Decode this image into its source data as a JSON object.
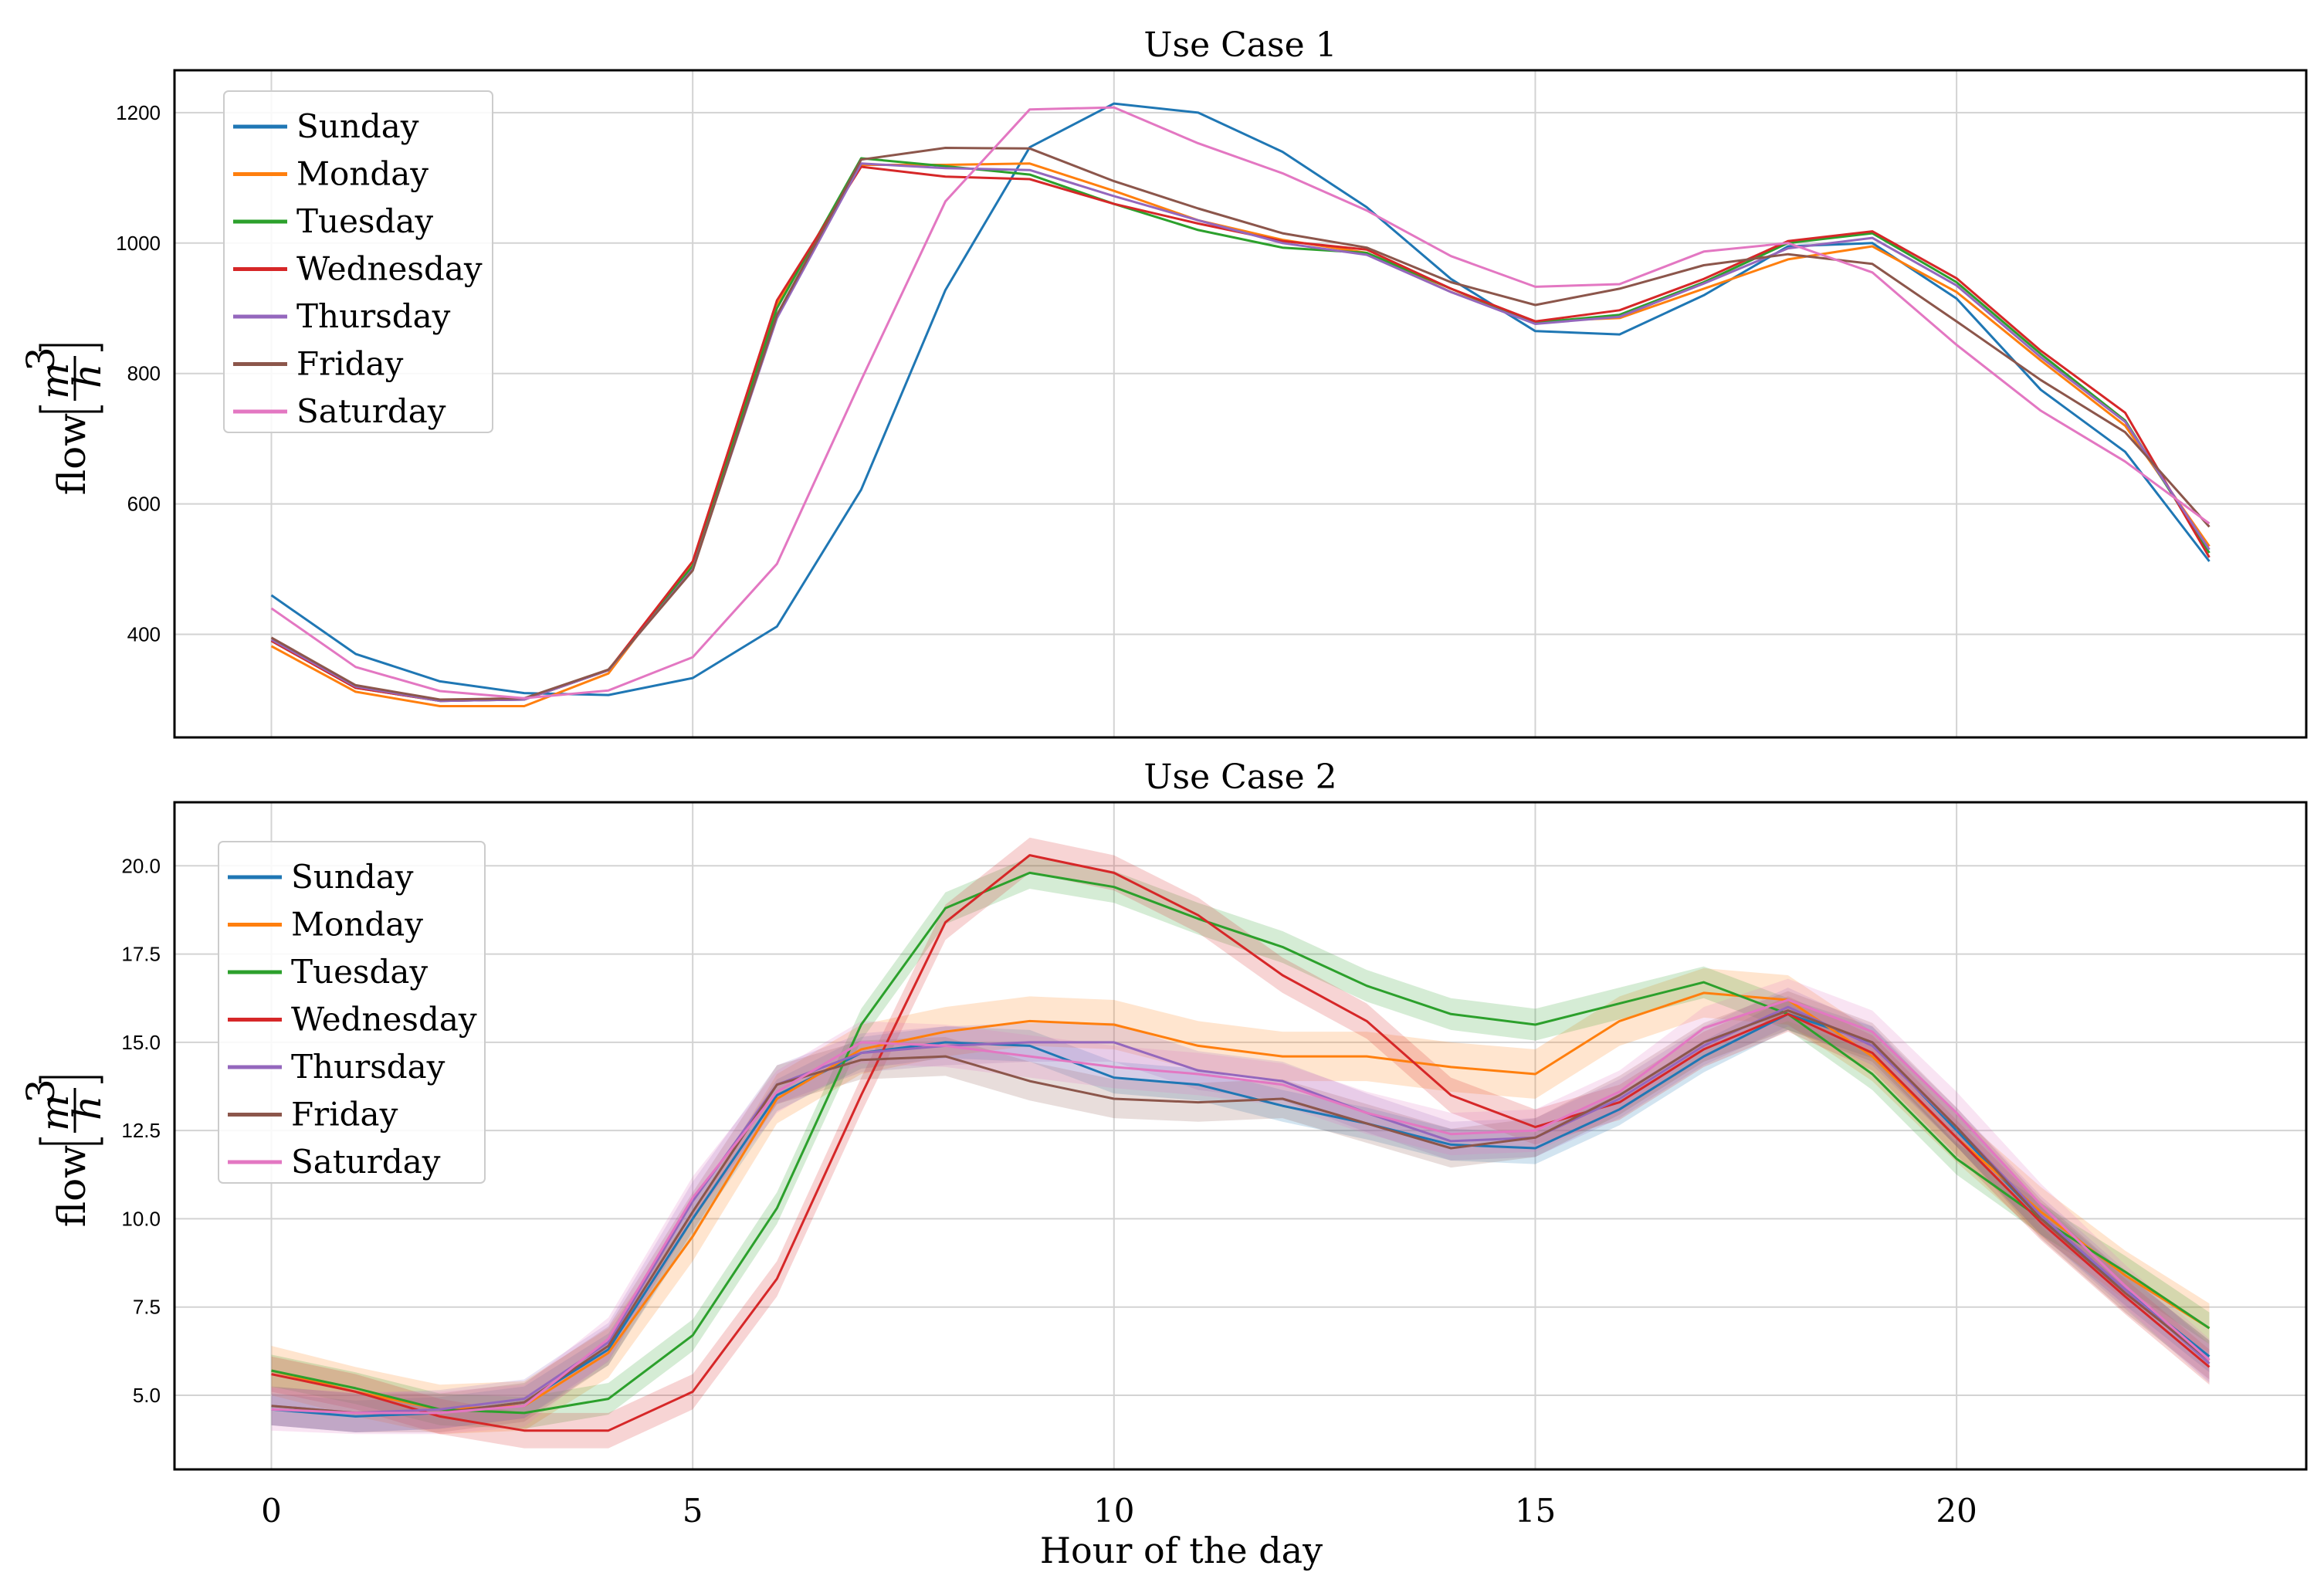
{
  "figure": {
    "xlabel": "Hour of the day",
    "ylabel_prefix": "flow",
    "ylabel_num": "m",
    "ylabel_exp": "3",
    "ylabel_den": "h"
  },
  "colors": {
    "Sunday": "#1f77b4",
    "Monday": "#ff7f0e",
    "Tuesday": "#2ca02c",
    "Wednesday": "#d62728",
    "Thursday": "#9467bd",
    "Friday": "#8c564b",
    "Saturday": "#e377c2"
  },
  "chart_data": [
    {
      "type": "line",
      "title": "Use Case 1",
      "ylabel": "flow [m^3/h]",
      "xlabel": "",
      "x": [
        0,
        1,
        2,
        3,
        4,
        5,
        6,
        7,
        8,
        9,
        10,
        11,
        12,
        13,
        14,
        15,
        16,
        17,
        18,
        19,
        20,
        21,
        22,
        23
      ],
      "xlim": [
        -1.15,
        24.15
      ],
      "ylim": [
        242,
        1265
      ],
      "yticks": [
        400,
        600,
        800,
        1000,
        1200
      ],
      "xticks": [
        0,
        5,
        10,
        15,
        20
      ],
      "grid": true,
      "legend": "top-left",
      "series": [
        {
          "name": "Sunday",
          "values": [
            460,
            370,
            328,
            310,
            307,
            333,
            412,
            622,
            928,
            1147,
            1214,
            1200,
            1140,
            1055,
            945,
            865,
            860,
            920,
            995,
            1000,
            915,
            775,
            680,
            512
          ]
        },
        {
          "name": "Monday",
          "values": [
            382,
            312,
            290,
            290,
            340,
            510,
            905,
            1120,
            1120,
            1122,
            1080,
            1035,
            1005,
            985,
            925,
            880,
            885,
            930,
            975,
            995,
            925,
            820,
            720,
            535
          ]
        },
        {
          "name": "Tuesday",
          "values": [
            390,
            318,
            298,
            300,
            345,
            505,
            900,
            1130,
            1118,
            1105,
            1060,
            1020,
            993,
            985,
            930,
            878,
            890,
            940,
            1000,
            1015,
            940,
            830,
            728,
            525
          ]
        },
        {
          "name": "Wednesday",
          "values": [
            390,
            318,
            298,
            300,
            345,
            512,
            912,
            1117,
            1102,
            1098,
            1060,
            1030,
            1003,
            990,
            930,
            880,
            897,
            945,
            1003,
            1018,
            946,
            835,
            740,
            518
          ]
        },
        {
          "name": "Thursday",
          "values": [
            392,
            320,
            298,
            300,
            345,
            500,
            885,
            1122,
            1115,
            1112,
            1072,
            1035,
            1000,
            982,
            925,
            876,
            887,
            938,
            992,
            1008,
            935,
            825,
            726,
            530
          ]
        },
        {
          "name": "Friday",
          "values": [
            395,
            322,
            300,
            302,
            346,
            498,
            890,
            1128,
            1146,
            1145,
            1095,
            1053,
            1015,
            993,
            940,
            905,
            930,
            966,
            983,
            968,
            880,
            790,
            710,
            565
          ]
        },
        {
          "name": "Saturday",
          "values": [
            440,
            350,
            313,
            302,
            314,
            365,
            508,
            790,
            1064,
            1205,
            1208,
            1153,
            1107,
            1050,
            980,
            933,
            937,
            987,
            1000,
            955,
            844,
            743,
            665,
            570
          ]
        }
      ]
    },
    {
      "type": "line",
      "title": "Use Case 2",
      "ylabel": "flow [m^3/h]",
      "xlabel": "Hour of the day",
      "x": [
        0,
        1,
        2,
        3,
        4,
        5,
        6,
        7,
        8,
        9,
        10,
        11,
        12,
        13,
        14,
        15,
        16,
        17,
        18,
        19,
        20,
        21,
        22,
        23
      ],
      "xlim": [
        -1.15,
        24.15
      ],
      "ylim": [
        2.9,
        21.8
      ],
      "yticks": [
        5.0,
        7.5,
        10.0,
        12.5,
        15.0,
        17.5,
        20.0
      ],
      "ytick_labels": [
        "5.0",
        "7.5",
        "10.0",
        "12.5",
        "15.0",
        "17.5",
        "20.0"
      ],
      "xticks": [
        0,
        5,
        10,
        15,
        20
      ],
      "grid": true,
      "legend": "top-left",
      "series": [
        {
          "name": "Sunday",
          "band": 0.45,
          "values": [
            4.6,
            4.4,
            4.5,
            4.8,
            6.3,
            10.0,
            13.5,
            14.7,
            15.0,
            14.9,
            14.0,
            13.8,
            13.2,
            12.7,
            12.1,
            12.0,
            13.1,
            14.6,
            15.8,
            15.0,
            12.5,
            10.0,
            8.0,
            6.1
          ]
        },
        {
          "name": "Monday",
          "band": 0.7,
          "values": [
            5.7,
            5.1,
            4.6,
            4.7,
            6.2,
            9.5,
            13.4,
            14.8,
            15.3,
            15.6,
            15.5,
            14.9,
            14.6,
            14.6,
            14.3,
            14.1,
            15.6,
            16.4,
            16.2,
            14.6,
            12.3,
            10.2,
            8.4,
            6.9
          ]
        },
        {
          "name": "Tuesday",
          "band": 0.45,
          "values": [
            5.7,
            5.2,
            4.6,
            4.5,
            4.9,
            6.7,
            10.3,
            15.5,
            18.8,
            19.8,
            19.4,
            18.5,
            17.7,
            16.6,
            15.8,
            15.5,
            16.1,
            16.7,
            15.8,
            14.1,
            11.7,
            10.0,
            8.5,
            6.9
          ]
        },
        {
          "name": "Wednesday",
          "band": 0.5,
          "values": [
            5.6,
            5.1,
            4.4,
            4.0,
            4.0,
            5.1,
            8.3,
            13.5,
            18.4,
            20.3,
            19.8,
            18.6,
            16.9,
            15.6,
            13.5,
            12.6,
            13.3,
            14.8,
            15.8,
            14.7,
            12.3,
            9.9,
            7.8,
            5.8
          ]
        },
        {
          "name": "Thursday",
          "band": 0.55,
          "values": [
            4.7,
            4.5,
            4.6,
            4.9,
            6.5,
            10.5,
            13.8,
            14.7,
            14.9,
            15.0,
            15.0,
            14.2,
            13.9,
            13.0,
            12.2,
            12.3,
            13.4,
            14.9,
            16.0,
            14.9,
            12.6,
            10.1,
            8.0,
            5.9
          ]
        },
        {
          "name": "Friday",
          "band": 0.55,
          "values": [
            4.7,
            4.5,
            4.5,
            4.8,
            6.4,
            10.2,
            13.8,
            14.5,
            14.6,
            13.9,
            13.4,
            13.3,
            13.4,
            12.7,
            12.0,
            12.3,
            13.5,
            15.0,
            15.9,
            15.0,
            12.6,
            10.0,
            7.9,
            6.0
          ]
        },
        {
          "name": "Saturday",
          "band": 0.6,
          "values": [
            4.6,
            4.5,
            4.5,
            4.7,
            6.6,
            10.6,
            13.6,
            15.0,
            14.9,
            14.6,
            14.3,
            14.1,
            13.8,
            13.0,
            12.4,
            12.5,
            13.6,
            15.4,
            16.2,
            15.3,
            13.0,
            10.4,
            8.1,
            6.0
          ]
        }
      ]
    }
  ]
}
